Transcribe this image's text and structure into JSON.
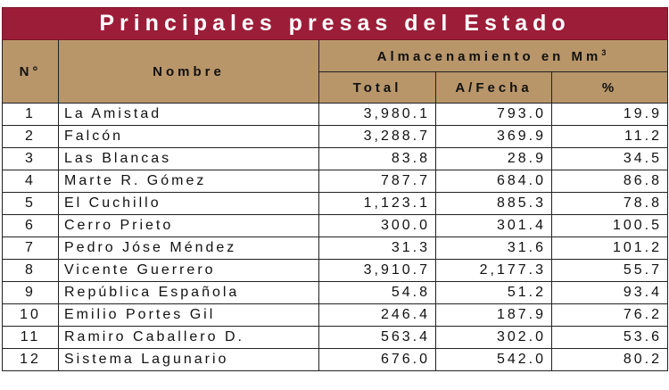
{
  "title": "Principales presas del Estado",
  "header": {
    "number": "N°",
    "name": "Nombre",
    "storage": "Almacenamiento en Mm",
    "storage_sup": "3",
    "total": "Total",
    "to_date": "A/Fecha",
    "percent": "%"
  },
  "colors": {
    "title_bg": "#9c1d38",
    "header_bg": "#b8966a"
  },
  "rows": [
    {
      "n": "1",
      "name": "La Amistad",
      "total": "3,980.1",
      "to_date": "793.0",
      "percent": "19.9"
    },
    {
      "n": "2",
      "name": "Falcón",
      "total": "3,288.7",
      "to_date": "369.9",
      "percent": "11.2"
    },
    {
      "n": "3",
      "name": "Las Blancas",
      "total": "83.8",
      "to_date": "28.9",
      "percent": "34.5"
    },
    {
      "n": "4",
      "name": "Marte R. Gómez",
      "total": "787.7",
      "to_date": "684.0",
      "percent": "86.8"
    },
    {
      "n": "5",
      "name": "El Cuchillo",
      "total": "1,123.1",
      "to_date": "885.3",
      "percent": "78.8"
    },
    {
      "n": "6",
      "name": "Cerro Prieto",
      "total": "300.0",
      "to_date": "301.4",
      "percent": "100.5"
    },
    {
      "n": "7",
      "name": "Pedro Jóse Méndez",
      "total": "31.3",
      "to_date": "31.6",
      "percent": "101.2"
    },
    {
      "n": "8",
      "name": "Vicente Guerrero",
      "total": "3,910.7",
      "to_date": "2,177.3",
      "percent": "55.7"
    },
    {
      "n": "9",
      "name": "República Española",
      "total": "54.8",
      "to_date": "51.2",
      "percent": "93.4"
    },
    {
      "n": "10",
      "name": "Emilio Portes Gil",
      "total": "246.4",
      "to_date": "187.9",
      "percent": "76.2"
    },
    {
      "n": "11",
      "name": "Ramiro Caballero D.",
      "total": "563.4",
      "to_date": "302.0",
      "percent": "53.6"
    },
    {
      "n": "12",
      "name": "Sistema Lagunario",
      "total": "676.0",
      "to_date": "542.0",
      "percent": "80.2"
    }
  ]
}
